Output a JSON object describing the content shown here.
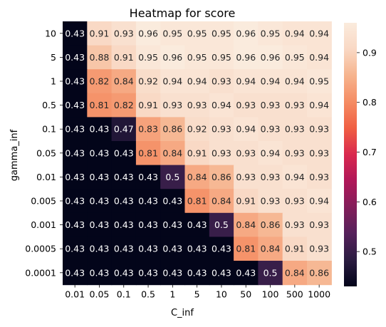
{
  "chart_data": {
    "type": "heatmap",
    "title": "Heatmap for score",
    "xlabel": "C_inf",
    "ylabel": "gamma_inf",
    "x_categories": [
      "0.01",
      "0.05",
      "0.1",
      "0.5",
      "1",
      "5",
      "10",
      "50",
      "100",
      "500",
      "1000"
    ],
    "y_categories": [
      "10",
      "5",
      "1",
      "0.5",
      "0.1",
      "0.05",
      "0.01",
      "0.005",
      "0.001",
      "0.0005",
      "0.0001"
    ],
    "values": [
      [
        0.43,
        0.91,
        0.93,
        0.96,
        0.95,
        0.95,
        0.95,
        0.96,
        0.95,
        0.94,
        0.94
      ],
      [
        0.43,
        0.88,
        0.91,
        0.95,
        0.96,
        0.95,
        0.95,
        0.96,
        0.96,
        0.95,
        0.94
      ],
      [
        0.43,
        0.82,
        0.84,
        0.92,
        0.94,
        0.94,
        0.93,
        0.94,
        0.94,
        0.94,
        0.95
      ],
      [
        0.43,
        0.81,
        0.82,
        0.91,
        0.93,
        0.93,
        0.94,
        0.93,
        0.93,
        0.93,
        0.94
      ],
      [
        0.43,
        0.43,
        0.47,
        0.83,
        0.86,
        0.92,
        0.93,
        0.94,
        0.93,
        0.93,
        0.93
      ],
      [
        0.43,
        0.43,
        0.43,
        0.81,
        0.84,
        0.91,
        0.93,
        0.93,
        0.94,
        0.93,
        0.93
      ],
      [
        0.43,
        0.43,
        0.43,
        0.43,
        0.5,
        0.84,
        0.86,
        0.93,
        0.93,
        0.94,
        0.93
      ],
      [
        0.43,
        0.43,
        0.43,
        0.43,
        0.43,
        0.81,
        0.84,
        0.91,
        0.93,
        0.93,
        0.94
      ],
      [
        0.43,
        0.43,
        0.43,
        0.43,
        0.43,
        0.43,
        0.5,
        0.84,
        0.86,
        0.93,
        0.93
      ],
      [
        0.43,
        0.43,
        0.43,
        0.43,
        0.43,
        0.43,
        0.43,
        0.81,
        0.84,
        0.91,
        0.93
      ],
      [
        0.43,
        0.43,
        0.43,
        0.43,
        0.43,
        0.43,
        0.43,
        0.43,
        0.5,
        0.84,
        0.86
      ]
    ],
    "color_range": [
      0.43,
      0.96
    ],
    "colorbar_ticks": [
      "0.5",
      "0.6",
      "0.7",
      "0.8",
      "0.9"
    ],
    "colorbar_tick_values": [
      0.5,
      0.6,
      0.7,
      0.8,
      0.9
    ],
    "colormap": "rocket",
    "colormap_stops": [
      "#03051a",
      "#2b1c41",
      "#55215b",
      "#821e5a",
      "#b01759",
      "#d9294e",
      "#f05f43",
      "#f58c63",
      "#f6b48e",
      "#f9d8c4",
      "#faebdd"
    ]
  }
}
